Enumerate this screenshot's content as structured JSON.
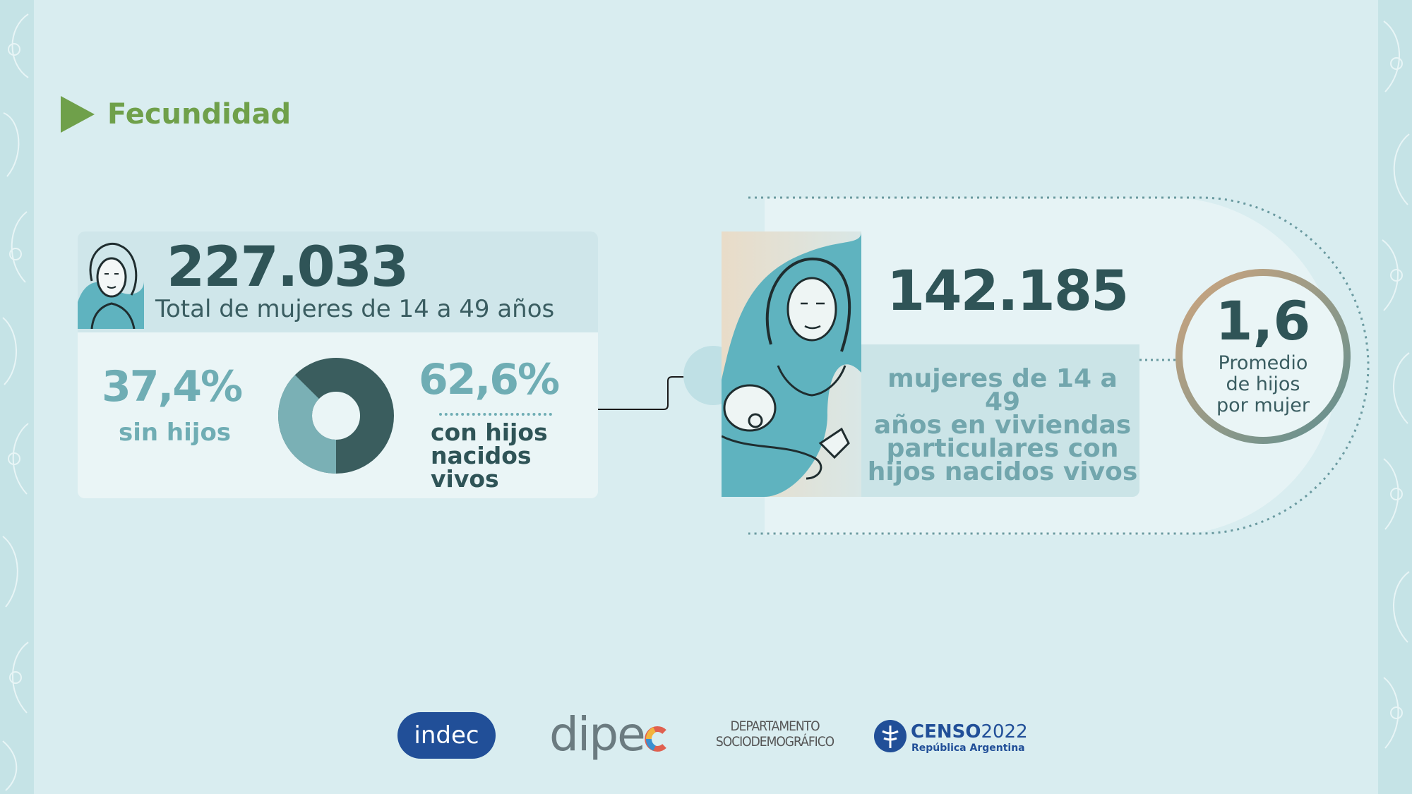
{
  "header": {
    "title": "Fecundidad"
  },
  "left_card": {
    "total_value": "227.033",
    "total_label": "Total de mujeres de 14 a 49 años",
    "sin_hijos_pct": "37,4%",
    "sin_hijos_label": "sin hijos",
    "con_hijos_pct": "62,6%",
    "con_hijos_label_line1": "con hijos",
    "con_hijos_label_line2": "nacidos",
    "con_hijos_label_line3": "vivos"
  },
  "donut": {
    "sin_hijos_share": 37.4,
    "con_hijos_share": 62.6,
    "colors": {
      "sin_hijos": "#7ab0b5",
      "con_hijos": "#3a5d5e"
    }
  },
  "right_card": {
    "mothers_value": "142.185",
    "mothers_label_line1": "mujeres de 14 a 49",
    "mothers_label_line2": "años en viviendas",
    "mothers_label_line3": "particulares con",
    "mothers_label_line4": "hijos nacidos vivos",
    "avg_value": "1,6",
    "avg_label_line1": "Promedio",
    "avg_label_line2": "de hijos",
    "avg_label_line3": "por mujer"
  },
  "footer": {
    "indec": "indec",
    "dipec": "dipe",
    "depto_line1": "DEPARTAMENTO",
    "depto_line2": "SOCIODEMOGRÁFICO",
    "censo": "CENSO",
    "censo_year": "2022",
    "censo_sub": "República Argentina"
  },
  "colors": {
    "accent_green": "#6fa04a",
    "dark_teal": "#2f5457",
    "light_teal": "#6fadb4",
    "background": "#d9edf0"
  }
}
